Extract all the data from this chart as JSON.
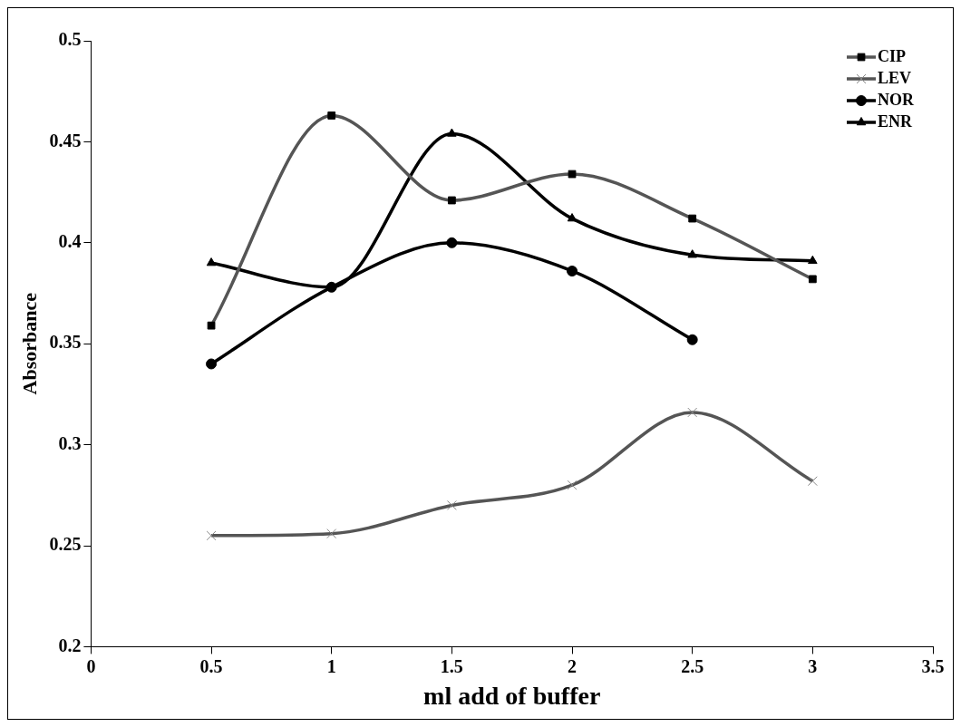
{
  "chart_data": {
    "type": "line",
    "xlabel": "ml add of buffer",
    "ylabel": "Absorbance",
    "xlim": [
      0,
      3.5
    ],
    "xticks": [
      0,
      0.5,
      1,
      1.5,
      2,
      2.5,
      3,
      3.5
    ],
    "ylim": [
      0.2,
      0.5
    ],
    "yticks": [
      0.2,
      0.25,
      0.3,
      0.35,
      0.4,
      0.45,
      0.5
    ],
    "grid": false,
    "legend": "top right",
    "series": [
      {
        "name": "CIP",
        "color": "#555555",
        "marker": "square",
        "x": [
          0.5,
          1,
          1.5,
          2,
          2.5,
          3
        ],
        "values": [
          0.359,
          0.463,
          0.421,
          0.434,
          0.412,
          0.382
        ]
      },
      {
        "name": "LEV",
        "color": "#555555",
        "marker": "cross",
        "x": [
          0.5,
          1,
          1.5,
          2,
          2.5,
          3
        ],
        "values": [
          0.255,
          0.256,
          0.27,
          0.28,
          0.316,
          0.282
        ]
      },
      {
        "name": "NOR",
        "color": "#000000",
        "marker": "circle",
        "x": [
          0.5,
          1,
          1.5,
          2,
          2.5
        ],
        "values": [
          0.34,
          0.378,
          0.4,
          0.386,
          0.352
        ]
      },
      {
        "name": "ENR",
        "color": "#000000",
        "marker": "triangle",
        "x": [
          0.5,
          1,
          1.5,
          2,
          2.5,
          3
        ],
        "values": [
          0.39,
          0.378,
          0.454,
          0.412,
          0.394,
          0.391
        ]
      }
    ]
  }
}
